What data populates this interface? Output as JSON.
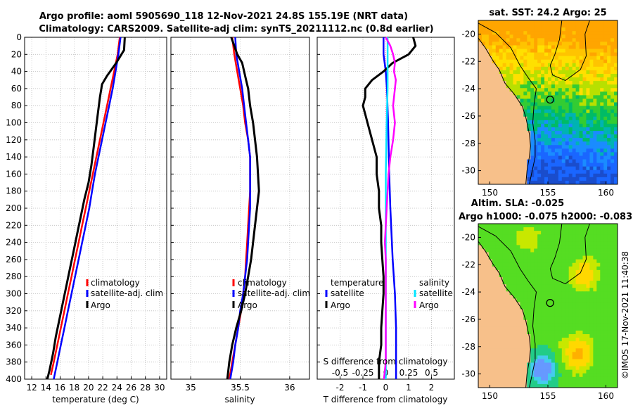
{
  "header": {
    "title_line1": "Argo profile: aoml 5905690_118 12-Nov-2021 24.8S 155.19E (NRT data)",
    "title_line2": "Climatology: CARS2009. Satellite-adj clim: synTS_20211112.nc (0.8d earlier)"
  },
  "watermark": "©IMOS 17-Nov-2021 11:40:38",
  "colors": {
    "climatology": "#ff0000",
    "satellite": "#0000ff",
    "argo": "#000000",
    "satellite_salinity": "#00e5ff",
    "argo_salinity": "#ff00ff",
    "grid": "#bdbdbd",
    "land": "#f7c08a"
  },
  "chart_data": [
    {
      "type": "line",
      "id": "temperature",
      "xlabel": "temperature (deg C)",
      "ylabel": "",
      "xlim": [
        11,
        31
      ],
      "ylim": [
        400,
        0
      ],
      "xticks": [
        12,
        14,
        16,
        18,
        20,
        22,
        24,
        26,
        28,
        30
      ],
      "yticks": [
        0,
        20,
        40,
        60,
        80,
        100,
        120,
        140,
        160,
        180,
        200,
        220,
        240,
        260,
        280,
        300,
        320,
        340,
        360,
        380,
        400
      ],
      "grid": true,
      "legend_position": "lower-right",
      "series": [
        {
          "name": "climatology",
          "color": "red",
          "depth": [
            0,
            20,
            40,
            60,
            80,
            100,
            120,
            140,
            160,
            180,
            200,
            220,
            240,
            260,
            280,
            300,
            320,
            340,
            360,
            380,
            395
          ],
          "values": [
            24.4,
            24.1,
            23.6,
            23.1,
            22.6,
            22.1,
            21.6,
            21.1,
            20.6,
            20.1,
            19.6,
            19.1,
            18.6,
            18.1,
            17.6,
            17.1,
            16.6,
            16.1,
            15.6,
            15.1,
            14.7
          ]
        },
        {
          "name": "satellite-adj. clim",
          "color": "blue",
          "depth": [
            0,
            20,
            40,
            60,
            80,
            100,
            120,
            140,
            160,
            180,
            200,
            220,
            240,
            260,
            280,
            300,
            320,
            340,
            360,
            380,
            400
          ],
          "values": [
            24.5,
            24.2,
            23.8,
            23.4,
            22.9,
            22.4,
            21.9,
            21.4,
            20.9,
            20.5,
            20.1,
            19.6,
            19.1,
            18.6,
            18.1,
            17.6,
            17.1,
            16.6,
            16.1,
            15.6,
            15.1
          ]
        },
        {
          "name": "Argo",
          "color": "black",
          "depth": [
            0,
            15,
            30,
            45,
            55,
            70,
            90,
            110,
            130,
            150,
            170,
            190,
            210,
            230,
            250,
            270,
            290,
            310,
            330,
            350,
            370,
            390,
            400
          ],
          "values": [
            25.1,
            25.0,
            23.9,
            22.6,
            21.9,
            21.6,
            21.3,
            21.0,
            20.7,
            20.4,
            20.0,
            19.4,
            18.9,
            18.4,
            17.9,
            17.4,
            16.9,
            16.4,
            15.9,
            15.4,
            15.0,
            14.5,
            14.2
          ]
        }
      ],
      "legend": [
        "climatology",
        "satellite-adj. clim",
        "Argo"
      ]
    },
    {
      "type": "line",
      "id": "salinity",
      "xlabel": "salinity",
      "ylabel": "",
      "xlim": [
        34.8,
        36.2
      ],
      "ylim": [
        400,
        0
      ],
      "xticks": [
        35,
        35.5,
        36
      ],
      "grid": true,
      "legend_position": "lower-right",
      "series": [
        {
          "name": "climatology",
          "color": "red",
          "depth": [
            0,
            20,
            40,
            60,
            80,
            100,
            120,
            140,
            160,
            180,
            200,
            220,
            240,
            260,
            280,
            300,
            320,
            340,
            360,
            380,
            400
          ],
          "values": [
            35.42,
            35.44,
            35.47,
            35.5,
            35.53,
            35.55,
            35.58,
            35.6,
            35.6,
            35.6,
            35.59,
            35.58,
            35.57,
            35.56,
            35.55,
            35.53,
            35.51,
            35.48,
            35.45,
            35.42,
            35.39
          ]
        },
        {
          "name": "satellite-adj. clim",
          "color": "blue",
          "depth": [
            0,
            20,
            40,
            60,
            80,
            100,
            120,
            140,
            160,
            180,
            200,
            220,
            240,
            260,
            280,
            300,
            320,
            340,
            360,
            380,
            400
          ],
          "values": [
            35.45,
            35.46,
            35.49,
            35.52,
            35.54,
            35.56,
            35.58,
            35.6,
            35.6,
            35.6,
            35.6,
            35.59,
            35.58,
            35.57,
            35.55,
            35.53,
            35.5,
            35.48,
            35.45,
            35.43,
            35.4
          ]
        },
        {
          "name": "Argo",
          "color": "black",
          "depth": [
            0,
            10,
            20,
            30,
            40,
            50,
            60,
            80,
            100,
            120,
            140,
            160,
            180,
            200,
            220,
            240,
            260,
            280,
            300,
            320,
            340,
            360,
            380,
            400
          ],
          "values": [
            35.41,
            35.44,
            35.47,
            35.52,
            35.54,
            35.56,
            35.58,
            35.6,
            35.63,
            35.65,
            35.67,
            35.68,
            35.69,
            35.67,
            35.65,
            35.63,
            35.61,
            35.58,
            35.55,
            35.51,
            35.46,
            35.42,
            35.39,
            35.37
          ]
        }
      ],
      "legend": [
        "climatology",
        "satellite-adj. clim",
        "Argo"
      ]
    },
    {
      "type": "line",
      "id": "differences",
      "xlabel": "T difference from climatology",
      "x2label": "S difference from climatology",
      "xlim": [
        -3,
        3
      ],
      "x2lim": [
        -0.75,
        0.75
      ],
      "ylim": [
        400,
        0
      ],
      "xticks": [
        -2,
        -1,
        0,
        1,
        2
      ],
      "x2ticks": [
        -0.5,
        -0.25,
        0,
        0.25,
        0.5
      ],
      "x2ticklabels": [
        "-0.5",
        "-0.25",
        "0",
        "0.25",
        "0.5"
      ],
      "grid": true,
      "legend_position": "lower",
      "legend_title_temperature": "temperature",
      "legend_title_salinity": "salinity",
      "series": [
        {
          "name": "temperature satellite",
          "color": "blue",
          "axis": "T",
          "depth": [
            0,
            20,
            40,
            60,
            100,
            160,
            200,
            260,
            300,
            340,
            380,
            400
          ],
          "values": [
            -0.1,
            -0.1,
            0.0,
            0.05,
            0.1,
            0.15,
            0.2,
            0.3,
            0.4,
            0.45,
            0.45,
            0.45
          ]
        },
        {
          "name": "temperature Argo",
          "color": "black",
          "axis": "T",
          "depth": [
            0,
            10,
            20,
            30,
            40,
            50,
            60,
            70,
            80,
            90,
            100,
            120,
            140,
            160,
            180,
            200,
            220,
            240,
            260,
            280,
            300,
            320,
            340,
            360,
            380,
            400
          ],
          "values": [
            1.2,
            1.3,
            1.0,
            0.3,
            -0.1,
            -0.6,
            -0.9,
            -0.9,
            -1.0,
            -0.9,
            -0.8,
            -0.6,
            -0.4,
            -0.4,
            -0.3,
            -0.3,
            -0.2,
            -0.2,
            -0.15,
            -0.1,
            -0.1,
            -0.15,
            -0.2,
            -0.2,
            -0.3,
            -0.3
          ]
        },
        {
          "name": "salinity satellite",
          "color": "cyan",
          "axis": "S",
          "depth": [
            0,
            20,
            40,
            60,
            100,
            160,
            200,
            260,
            300,
            340,
            380,
            400
          ],
          "values": [
            0.02,
            0.02,
            0.02,
            0.02,
            0.01,
            0.0,
            0.0,
            0.0,
            0.0,
            0.0,
            0.0,
            0.0
          ]
        },
        {
          "name": "salinity Argo",
          "color": "magenta",
          "axis": "S",
          "depth": [
            0,
            10,
            20,
            30,
            40,
            50,
            60,
            80,
            100,
            120,
            140,
            160,
            180,
            200,
            220,
            240,
            260,
            280,
            300,
            320,
            340,
            360,
            380,
            400
          ],
          "values": [
            0.0,
            0.05,
            0.08,
            0.1,
            0.09,
            0.11,
            0.1,
            0.08,
            0.1,
            0.08,
            0.05,
            0.03,
            0.02,
            0.01,
            0.0,
            -0.01,
            0.0,
            0.0,
            0.0,
            0.0,
            0.0,
            0.0,
            0.0,
            -0.02
          ]
        }
      ],
      "legend_temperature": [
        "satellite",
        "Argo"
      ],
      "legend_salinity": [
        "satellite",
        "Argo"
      ]
    },
    {
      "type": "heatmap",
      "id": "sst_map",
      "title": "sat. SST: 24.2 Argo: 25",
      "xlim": [
        149,
        161
      ],
      "ylim": [
        -31,
        -19
      ],
      "xticks": [
        150,
        155,
        160
      ],
      "yticks": [
        -20,
        -22,
        -24,
        -26,
        -28,
        -30
      ],
      "float_position": [
        155.19,
        -24.8
      ]
    },
    {
      "type": "heatmap",
      "id": "sla_map",
      "title": "Altim. SLA: -0.025",
      "subtitle": "Argo h1000: -0.075 h2000: -0.083",
      "xlim": [
        149,
        161
      ],
      "ylim": [
        -31,
        -19
      ],
      "xticks": [
        150,
        155,
        160
      ],
      "yticks": [
        -20,
        -22,
        -24,
        -26,
        -28,
        -30
      ],
      "float_position": [
        155.19,
        -24.8
      ]
    }
  ]
}
